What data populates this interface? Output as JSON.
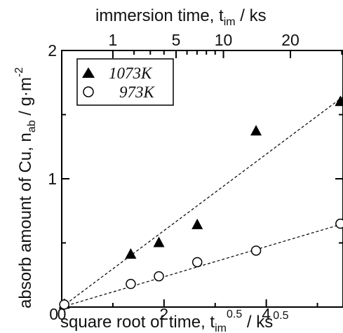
{
  "chart_data": {
    "type": "scatter",
    "xlabel": {
      "main": "square root of time,  t",
      "sub": "im",
      "sup": "0.5",
      "tail": " / ks",
      "tail_sup": "0.5"
    },
    "ylabel": {
      "main": "absorb amount of Cu,  n",
      "sub": "ab",
      "tail": " / g·m",
      "tail_sup": "-2"
    },
    "x2label": {
      "main": "immersion time,  t",
      "sub": "im",
      "tail": " / ks"
    },
    "xlim": [
      0,
      5.5
    ],
    "ylim": [
      0,
      2
    ],
    "x_ticks": [
      0,
      2,
      4
    ],
    "x_tick_labels": [
      "0",
      "2",
      "4"
    ],
    "y_ticks": [
      1,
      2
    ],
    "y_tick_labels": [
      "1",
      "2"
    ],
    "x2_ticks": [
      1,
      5,
      10,
      20
    ],
    "x2_tick_labels": [
      "1",
      "5",
      "10",
      "20"
    ],
    "legend_position": "top-left",
    "series": [
      {
        "name": "1073K",
        "marker": "filled-triangle",
        "x": [
          0.05,
          1.35,
          1.9,
          2.65,
          3.8,
          5.45
        ],
        "y": [
          0.02,
          0.41,
          0.5,
          0.64,
          1.37,
          1.6
        ],
        "fit_slope": 0.298
      },
      {
        "name": "973K",
        "marker": "open-circle",
        "x": [
          0.05,
          1.35,
          1.9,
          2.65,
          3.8,
          5.45
        ],
        "y": [
          0.02,
          0.18,
          0.24,
          0.35,
          0.44,
          0.65
        ],
        "fit_slope": 0.118
      }
    ]
  }
}
